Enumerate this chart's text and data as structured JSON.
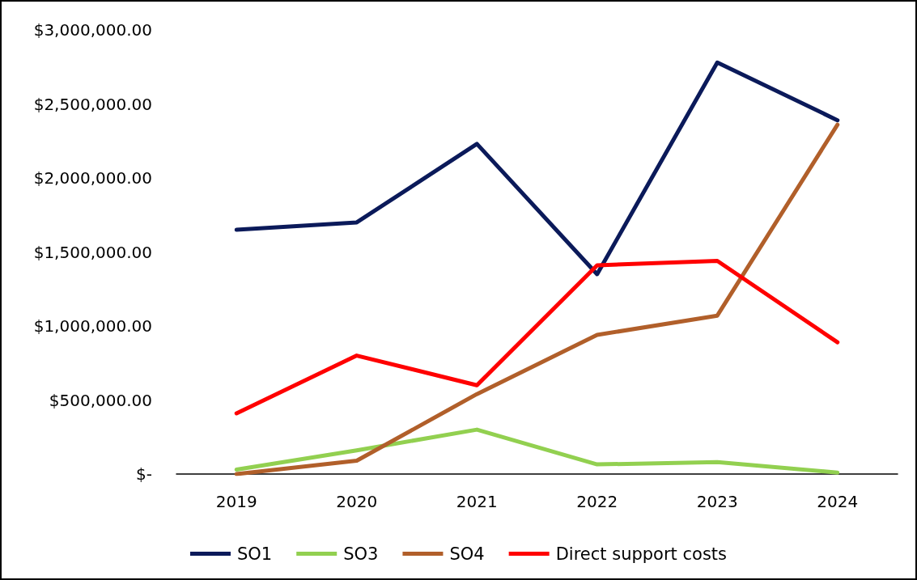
{
  "chart_data": {
    "type": "line",
    "categories": [
      "2019",
      "2020",
      "2021",
      "2022",
      "2023",
      "2024"
    ],
    "series": [
      {
        "name": "SO1",
        "color": "#0b1a5a",
        "values": [
          1650000,
          1700000,
          2230000,
          1350000,
          2780000,
          2390000
        ]
      },
      {
        "name": "SO3",
        "color": "#92d050",
        "values": [
          30000,
          160000,
          300000,
          65000,
          80000,
          10000
        ]
      },
      {
        "name": "SO4",
        "color": "#b15f2a",
        "values": [
          0,
          90000,
          540000,
          940000,
          1070000,
          2360000
        ]
      },
      {
        "name": "Direct support costs",
        "color": "#ff0000",
        "values": [
          410000,
          800000,
          600000,
          1410000,
          1440000,
          890000
        ]
      }
    ],
    "ylim": [
      0,
      3000000
    ],
    "yticks": [
      {
        "value": 0,
        "label": "$-"
      },
      {
        "value": 500000,
        "label": "$500,000.00"
      },
      {
        "value": 1000000,
        "label": "$1,000,000.00"
      },
      {
        "value": 1500000,
        "label": "$1,500,000.00"
      },
      {
        "value": 2000000,
        "label": "$2,000,000.00"
      },
      {
        "value": 2500000,
        "label": "$2,500,000.00"
      },
      {
        "value": 3000000,
        "label": "$3,000,000.00"
      }
    ],
    "grid": false,
    "legend": "bottom",
    "marker": "none",
    "line_style": "solid"
  }
}
